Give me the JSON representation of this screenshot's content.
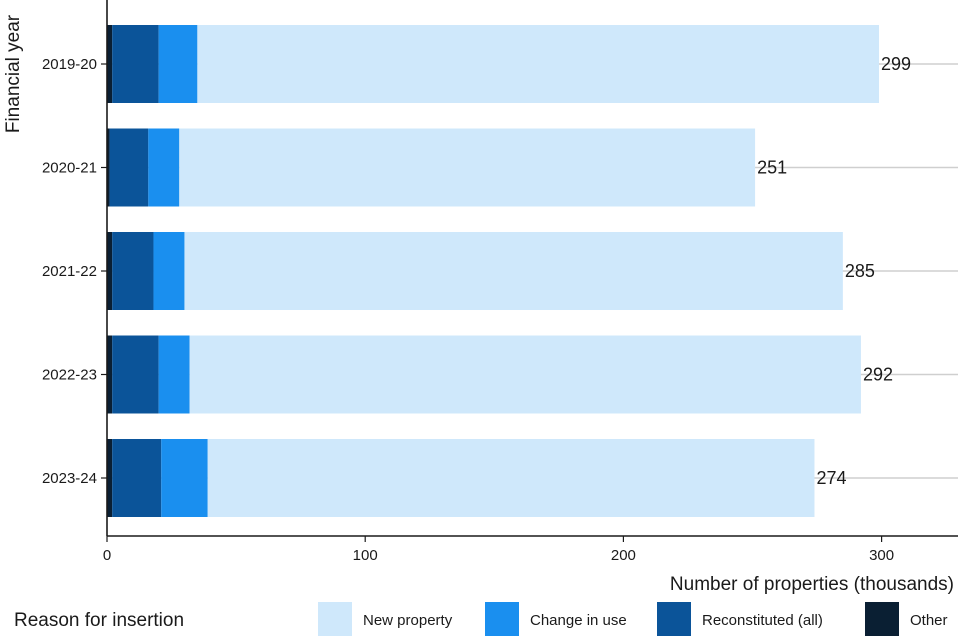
{
  "chart_data": {
    "type": "bar",
    "orientation": "horizontal",
    "stacked": true,
    "categories": [
      "2019-20",
      "2020-21",
      "2021-22",
      "2022-23",
      "2023-24"
    ],
    "series": [
      {
        "name": "Other",
        "color": "#0a1f33",
        "values": [
          2,
          1,
          2,
          2,
          2
        ]
      },
      {
        "name": "Reconstituted (all)",
        "color": "#0b5499",
        "values": [
          18,
          15,
          16,
          18,
          19
        ]
      },
      {
        "name": "Change in use",
        "color": "#1a8fef",
        "values": [
          15,
          12,
          12,
          12,
          18
        ]
      },
      {
        "name": "New property",
        "color": "#cfe8fb",
        "values": [
          264,
          223,
          255,
          260,
          235
        ]
      }
    ],
    "totals": [
      "299",
      "251",
      "285",
      "292",
      "274"
    ],
    "xlabel": "Number of properties (thousands)",
    "ylabel": "Financial year",
    "x_ticks": [
      0,
      100,
      200,
      300
    ],
    "xlim": [
      0,
      330
    ],
    "grid": "horizontal lines at categories",
    "legend": {
      "title": "Reason for insertion",
      "position": "bottom",
      "order": [
        "New property",
        "Change in use",
        "Reconstituted (all)",
        "Other"
      ]
    }
  }
}
